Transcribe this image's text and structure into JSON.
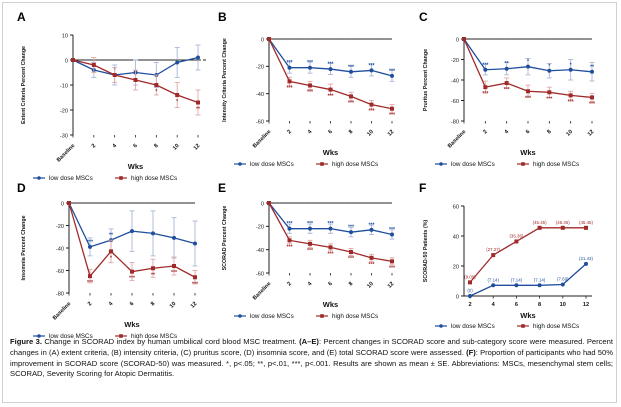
{
  "colors": {
    "low": "#1f4e9c",
    "high": "#a02a2a",
    "errLow": "#a9b7d8",
    "errHigh": "#e1a7a7",
    "axis": "#222222",
    "dash": "#2a2a2a"
  },
  "chart_data": [
    {
      "panel": "A",
      "type": "line",
      "ylabel": "Extent Criteria Percent Change",
      "xlabel": "Wks",
      "categories": [
        "Baseline",
        "2",
        "4",
        "6",
        "8",
        "10",
        "12"
      ],
      "ylim": [
        -30,
        10
      ],
      "yticks": [
        10,
        0,
        -10,
        -20,
        -30
      ],
      "series": [
        {
          "name": "low dose MSCs",
          "values": [
            0,
            -4,
            -6,
            -5,
            -6,
            -1,
            1
          ],
          "err": [
            0,
            3,
            4,
            5,
            5,
            6,
            5
          ],
          "sig": [
            "",
            "*",
            "*",
            "",
            "",
            "",
            ""
          ]
        },
        {
          "name": "high dose MSCs",
          "values": [
            0,
            -2,
            -6,
            -8,
            -10,
            -14,
            -17
          ],
          "err": [
            0,
            3,
            3,
            4,
            4,
            5,
            5
          ],
          "sig": [
            "",
            "",
            "",
            "",
            "*",
            "*",
            "**"
          ]
        }
      ]
    },
    {
      "panel": "B",
      "type": "line",
      "ylabel": "Intensity Criteria Percent Change",
      "xlabel": "Wks",
      "categories": [
        "Baseline",
        "2",
        "4",
        "6",
        "8",
        "10",
        "12"
      ],
      "ylim": [
        -60,
        0
      ],
      "yticks": [
        0,
        -20,
        -40,
        -60
      ],
      "series": [
        {
          "name": "low dose MSCs",
          "values": [
            0,
            -21,
            -21,
            -22,
            -24,
            -23,
            -27
          ],
          "err": [
            0,
            4,
            4,
            4,
            4,
            4,
            4
          ],
          "sig": [
            "",
            "***",
            "***",
            "***",
            "***",
            "***",
            "***"
          ]
        },
        {
          "name": "high dose MSCs",
          "values": [
            0,
            -31,
            -34,
            -37,
            -42,
            -48,
            -51
          ],
          "err": [
            0,
            3,
            3,
            4,
            3,
            3,
            3
          ],
          "sig": [
            "",
            "***",
            "***",
            "***",
            "***",
            "***",
            "***"
          ]
        }
      ]
    },
    {
      "panel": "C",
      "type": "line",
      "ylabel": "Pruritus Percent Change",
      "xlabel": "Wks",
      "categories": [
        "Baseline",
        "2",
        "4",
        "6",
        "8",
        "10",
        "12"
      ],
      "ylim": [
        -80,
        0
      ],
      "yticks": [
        0,
        -20,
        -40,
        -60,
        -80
      ],
      "series": [
        {
          "name": "low dose MSCs",
          "values": [
            0,
            -30,
            -29,
            -27,
            -31,
            -30,
            -32
          ],
          "err": [
            0,
            5,
            6,
            8,
            7,
            10,
            9
          ],
          "sig": [
            "",
            "***",
            "**",
            "*",
            "*",
            "*",
            "**"
          ]
        },
        {
          "name": "high dose MSCs",
          "values": [
            0,
            -47,
            -43,
            -51,
            -52,
            -55,
            -57
          ],
          "err": [
            0,
            6,
            5,
            6,
            5,
            4,
            4
          ],
          "sig": [
            "",
            "***",
            "***",
            "***",
            "***",
            "***",
            "***"
          ]
        }
      ]
    },
    {
      "panel": "D",
      "type": "line",
      "ylabel": "Insomnia Percent Change",
      "xlabel": "Wks",
      "categories": [
        "Baseline",
        "2",
        "4",
        "6",
        "8",
        "10",
        "12"
      ],
      "ylim": [
        -80,
        0
      ],
      "yticks": [
        0,
        -20,
        -40,
        -60,
        -80
      ],
      "series": [
        {
          "name": "low dose MSCs",
          "values": [
            0,
            -39,
            -33,
            -25,
            -27,
            -31,
            -36
          ],
          "err": [
            0,
            8,
            10,
            18,
            20,
            18,
            20
          ],
          "sig": [
            "",
            "***",
            "**",
            "",
            "",
            "",
            ""
          ]
        },
        {
          "name": "high dose MSCs",
          "values": [
            0,
            -65,
            -43,
            -61,
            -58,
            -56,
            -66
          ],
          "err": [
            0,
            6,
            10,
            8,
            8,
            8,
            6
          ],
          "sig": [
            "",
            "***",
            "*",
            "***",
            "**",
            "***",
            "***"
          ]
        }
      ]
    },
    {
      "panel": "E",
      "type": "line",
      "ylabel": "SCORAD Percent Change",
      "xlabel": "Wks",
      "categories": [
        "Baseline",
        "2",
        "4",
        "6",
        "8",
        "10",
        "12"
      ],
      "ylim": [
        -60,
        0
      ],
      "yticks": [
        0,
        -20,
        -40,
        -60
      ],
      "series": [
        {
          "name": "low dose MSCs",
          "values": [
            0,
            -22,
            -22,
            -22,
            -25,
            -23,
            -27
          ],
          "err": [
            0,
            4,
            4,
            4,
            4,
            4,
            4
          ],
          "sig": [
            "",
            "***",
            "***",
            "***",
            "***",
            "***",
            "***"
          ]
        },
        {
          "name": "high dose MSCs",
          "values": [
            0,
            -32,
            -35,
            -38,
            -42,
            -47,
            -50
          ],
          "err": [
            0,
            3,
            3,
            3,
            3,
            3,
            3
          ],
          "sig": [
            "",
            "***",
            "***",
            "***",
            "***",
            "***",
            "***"
          ]
        }
      ]
    },
    {
      "panel": "F",
      "type": "line",
      "ylabel": "SCORAD-50 Patients (%)",
      "xlabel": "Wks",
      "categories": [
        "2",
        "4",
        "6",
        "8",
        "10",
        "12"
      ],
      "ylim": [
        0,
        60
      ],
      "yticks": [
        0,
        20,
        40,
        60
      ],
      "series": [
        {
          "name": "low dose MSCs",
          "values": [
            0,
            7.14,
            7.14,
            7.14,
            7.69,
            21.43
          ],
          "labels": [
            "(0)",
            "(7.14)",
            "(7.14)",
            "(7.14)",
            "(7.69)",
            "(21.43)"
          ]
        },
        {
          "name": "high dose MSCs",
          "values": [
            9.09,
            27.27,
            36.36,
            45.45,
            45.45,
            45.45
          ],
          "labels": [
            "(9.09)",
            "(27.27)",
            "(36.36)",
            "(45.45)",
            "(45.45)",
            "(45.45)"
          ]
        }
      ]
    }
  ],
  "caption": {
    "figure_label": "Figure 3.",
    "intro": " Change in SCORAD index by human umbilical cord blood MSC treatment. ",
    "a_e_label": "(A–E)",
    "a_e_text": ": Percent changes in SCORAD score and sub-category score were measured. Percent changes in (A) extent criteria, (B) intensity criteria, (C) pruritus score, (D) insomnia score, and (E) total SCORAD score were assessed. ",
    "f_label": "(F)",
    "f_text": ": Proportion of participants who had 50% improvement in SCORAD score (SCORAD-50) was measured. *, p<.05; **, p<.01, ***, p<.001. Results are shown as mean ± SE. Abbreviations: MSCs, mesenchymal stem cells; SCORAD, Severity Scoring for Atopic Dermatitis."
  }
}
